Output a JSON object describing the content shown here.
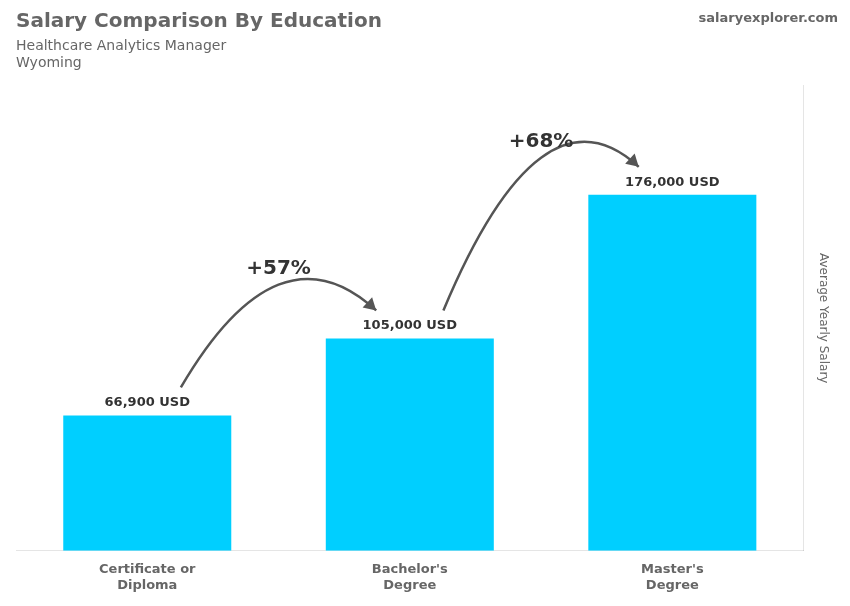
{
  "chart_data": {
    "type": "bar",
    "title": "Salary Comparison By Education",
    "subtitle": [
      "Healthcare Analytics Manager",
      "Wyoming"
    ],
    "ylabel": "Average Yearly Salary",
    "categories": [
      "Certificate or\nDiploma",
      "Bachelor's\nDegree",
      "Master's\nDegree"
    ],
    "values": [
      66900,
      105000,
      176000
    ],
    "value_labels": [
      "66,900 USD",
      "105,000 USD",
      "176,000 USD"
    ],
    "data_labels": true,
    "annotations": [
      "+57%",
      "+68%",
      "salaryexplorer.com"
    ],
    "color": "#00CFFF",
    "ylim": [
      0,
      230000
    ],
    "grid": false,
    "tick_labels": "x"
  }
}
